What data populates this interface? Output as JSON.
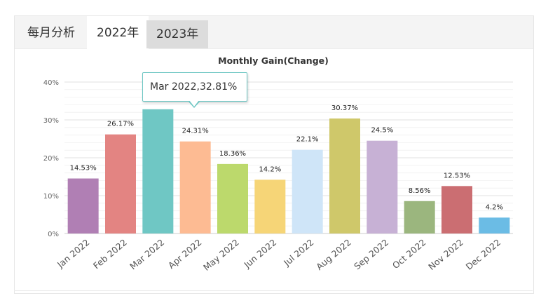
{
  "tabs": {
    "label_static": "每月分析",
    "year_2022": "2022年",
    "year_2023": "2023年",
    "active": "2022年"
  },
  "tooltip": {
    "text": "Mar 2022,32.81%",
    "border_color": "#6fc7c4"
  },
  "chart_data": {
    "type": "bar",
    "title": "Monthly Gain(Change)",
    "xlabel": "",
    "ylabel": "",
    "ylim": [
      0,
      40
    ],
    "yticks": [
      0,
      10,
      20,
      30,
      40
    ],
    "ytick_labels": [
      "0%",
      "10%",
      "20%",
      "30%",
      "40%"
    ],
    "grid": true,
    "categories": [
      "Jan 2022",
      "Feb 2022",
      "Mar 2022",
      "Apr 2022",
      "May 2022",
      "Jun 2022",
      "Jul 2022",
      "Aug 2022",
      "Sep 2022",
      "Oct 2022",
      "Nov 2022",
      "Dec 2022"
    ],
    "values": [
      14.53,
      26.17,
      32.81,
      24.31,
      18.36,
      14.2,
      22.1,
      30.37,
      24.5,
      8.56,
      12.53,
      4.2
    ],
    "data_labels": [
      "14.53%",
      "26.17%",
      "",
      "24.31%",
      "18.36%",
      "14.2%",
      "22.1%",
      "30.37%",
      "24.5%",
      "8.56%",
      "12.53%",
      "4.2%"
    ],
    "colors": [
      "#b07fb4",
      "#e38482",
      "#6fc7c4",
      "#fdbb93",
      "#bcd96c",
      "#f6d577",
      "#cfe5f8",
      "#cfc86a",
      "#c7b1d5",
      "#9bb67e",
      "#cb6e72",
      "#6bbce5"
    ]
  }
}
